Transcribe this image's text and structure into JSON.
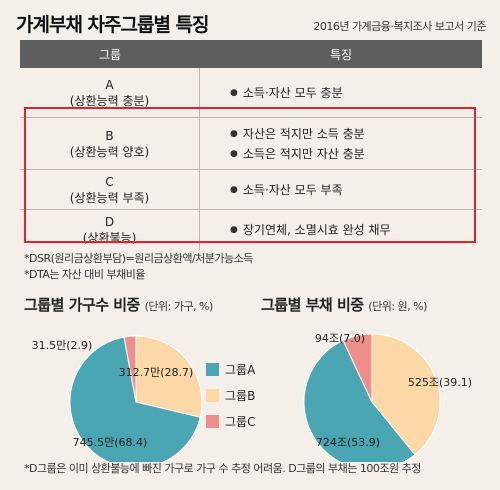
{
  "title": "가계부채 차주그룹별 특징",
  "source": "2016년 가계금융·복지조사 보고서 기준",
  "table": {
    "headers": [
      "그룹",
      "특징"
    ],
    "rows": [
      {
        "group": "A",
        "sub": "(상환능력 충분)",
        "features": [
          "소득·자산 모두 충분"
        ]
      },
      {
        "group": "B",
        "sub": "(상환능력 양호)",
        "features": [
          "자산은 적지만 소득 충분",
          "소득은 적지만 자산 충분"
        ]
      },
      {
        "group": "C",
        "sub": "(상환능력 부족)",
        "features": [
          "소득·자산 모두 부족"
        ]
      },
      {
        "group": "D",
        "sub": "(상환불능)",
        "features": [
          "장기연체, 소멸시효 완성 채무"
        ]
      }
    ]
  },
  "notes": [
    "*DSR(원리금상환부담)=원리금상환액/처분가능소득",
    "*DTA는 자산 대비 부채비율"
  ],
  "colors": {
    "A": "#4aa6b3",
    "B": "#fbd8a6",
    "C": "#ef8f8b"
  },
  "chart_data": [
    {
      "type": "pie",
      "title": "그룹별 가구수 비중",
      "unit": "(단위: 가구, %)",
      "labels": [
        "그룹A",
        "그룹B",
        "그룹C"
      ],
      "values": [
        68.4,
        28.7,
        2.9
      ],
      "data_labels": [
        "745.5만(68.4)",
        "312.7만(28.7)",
        "31.5만(2.9)"
      ]
    },
    {
      "type": "pie",
      "title": "그룹별 부채 비중",
      "unit": "(단위: 원, %)",
      "labels": [
        "그룹A",
        "그룹B",
        "그룹C"
      ],
      "values": [
        53.9,
        39.1,
        7.0
      ],
      "data_labels": [
        "724조(53.9)",
        "525조(39.1)",
        "94조(7.0)"
      ]
    }
  ],
  "legend": [
    "그룹A",
    "그룹B",
    "그룹C"
  ],
  "footnote": "*D그룹은 이미 상환불능에 빠진 가구로 가구 수 추정 어려움. D그룹의 부채는 100조원 추정"
}
